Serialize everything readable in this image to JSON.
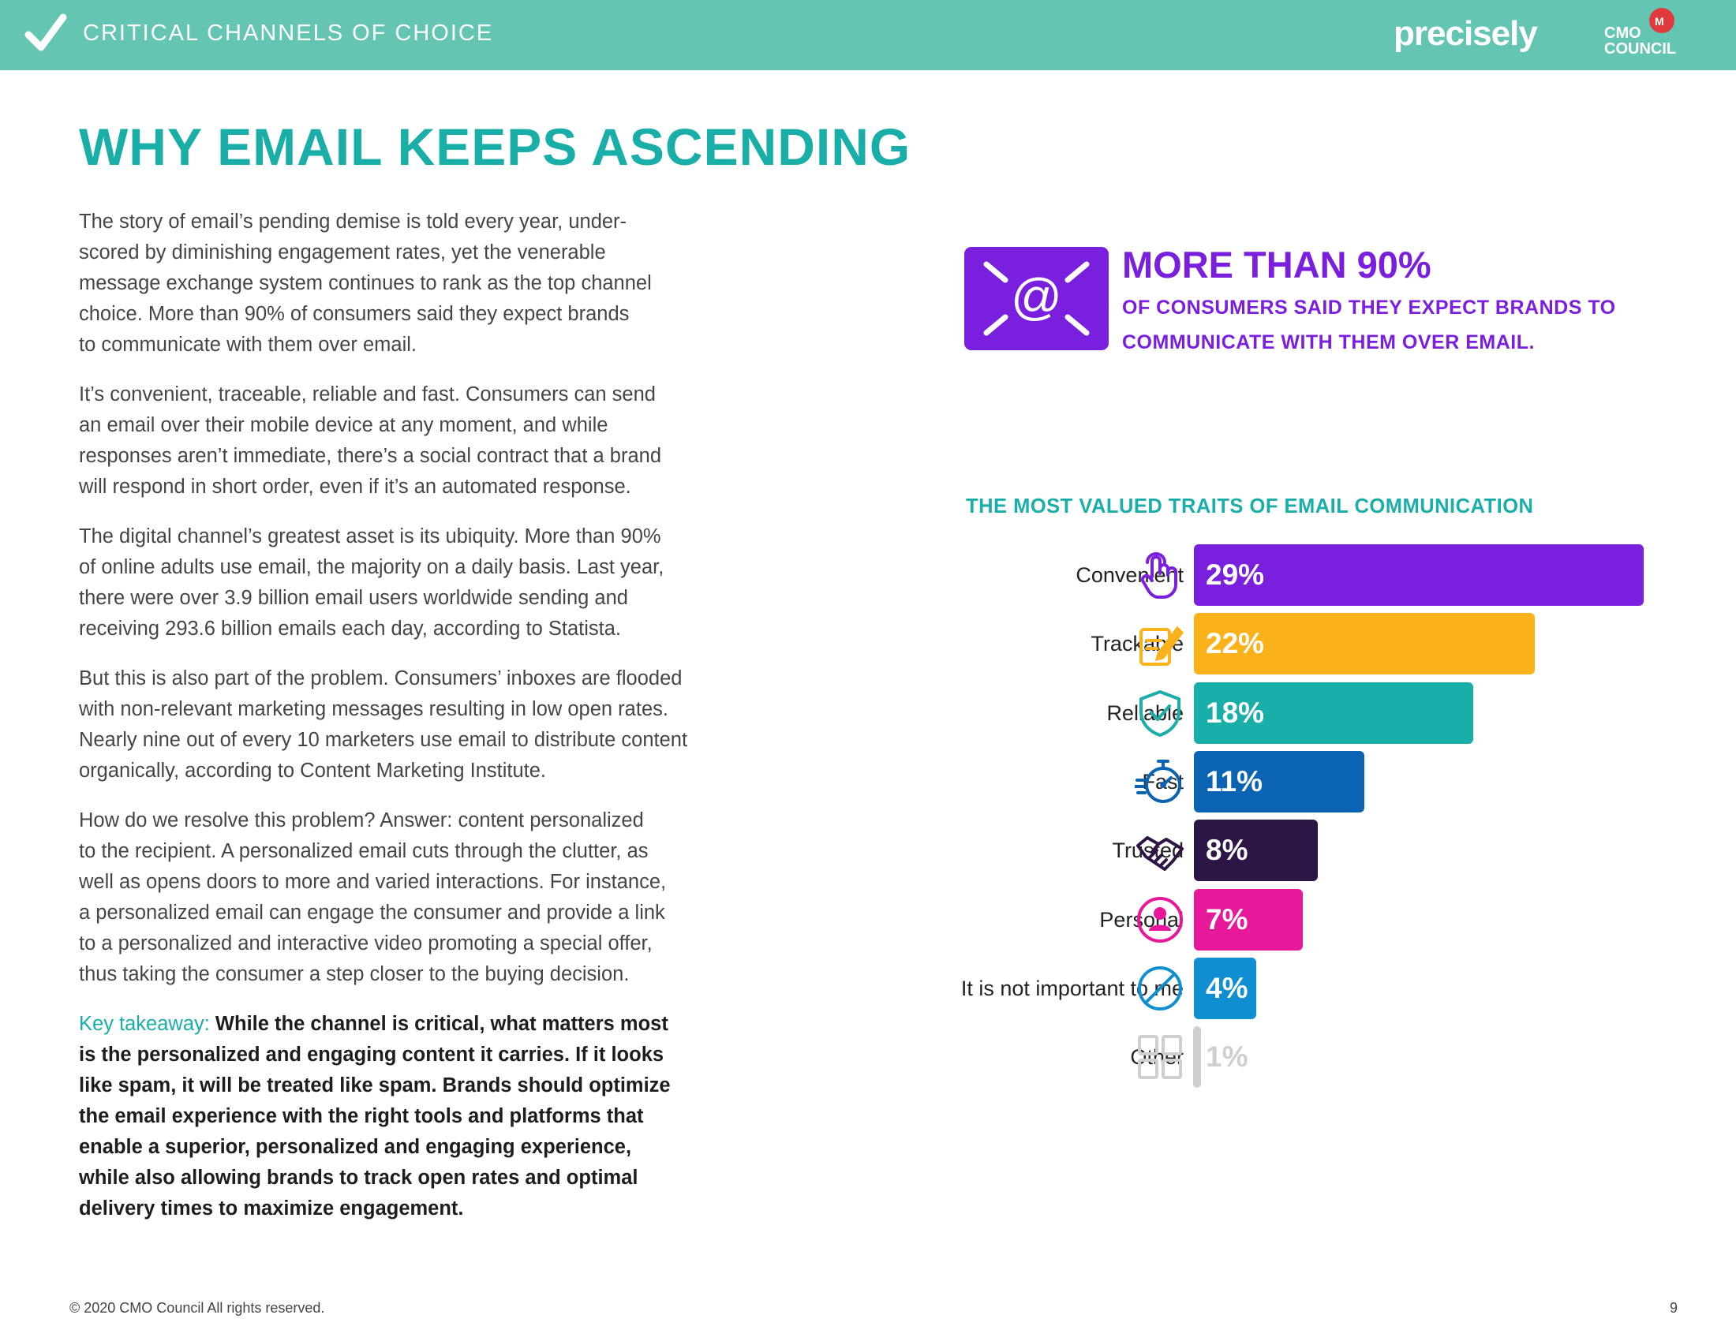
{
  "header": {
    "section_title": "CRITICAL CHANNELS OF CHOICE",
    "brand": "precisely",
    "logo_text": "CMO COUNCIL"
  },
  "page_title": "WHY EMAIL KEEPS ASCENDING",
  "body": {
    "paragraphs": [
      "The story of email’s pending demise is told every year, under-\nscored by diminishing engagement rates, yet the venerable\nmessage exchange system continues to rank as the top channel\nchoice. More than 90% of consumers said they expect brands\nto communicate with them over email.",
      "It’s convenient, traceable, reliable and fast. Consumers can send\nan email over their mobile device at any moment, and while\nresponses aren’t immediate, there’s a social contract that a brand\nwill respond in short order, even if it’s an automated response.",
      "The digital channel’s greatest asset is its ubiquity. More than 90%\nof online adults use email, the majority on a daily basis. Last year,\nthere were over 3.9 billion email users worldwide sending and\nreceiving 293.6 billion emails each day, according to Statista.",
      "But this is also part of the problem. Consumers’ inboxes are flooded\nwith non-relevant marketing messages resulting in low open rates.\nNearly nine out of every 10 marketers use email to distribute content\norganically, according to Content Marketing Institute.",
      "How do we resolve this problem? Answer: content personalized\nto the recipient. A personalized email cuts through the clutter, as\nwell as opens doors to more and varied interactions. For instance,\na personalized email can engage the consumer and provide a link\nto a personalized and interactive video promoting a special offer,\nthus taking the consumer a step closer to the buying decision."
    ],
    "takeaway_label": "Key takeaway:",
    "takeaway_text": " While the channel is critical, what matters most\nis the personalized and engaging content it carries. If it looks\nlike spam, it will be treated like spam. Brands should optimize\nthe email experience with the right tools and platforms that\nenable a superior, personalized and engaging experience,\nwhile also allowing brands to track open rates and optimal\ndelivery times to maximize engagement."
  },
  "callout": {
    "icon": "email-at-icon",
    "headline": "MORE THAN 90%",
    "subtext": "OF CONSUMERS SAID THEY EXPECT BRANDS TO\nCOMMUNICATE WITH THEM OVER EMAIL.",
    "color": "#7b1fdf"
  },
  "chart_data": {
    "type": "bar",
    "orientation": "horizontal",
    "title": "THE MOST VALUED TRAITS OF EMAIL COMMUNICATION",
    "categories": [
      "Convenient",
      "Trackable",
      "Reliable",
      "Fast",
      "Trusted",
      "Personal",
      "It is not important to me",
      "Other"
    ],
    "values": [
      29,
      22,
      18,
      11,
      8,
      7,
      4,
      1
    ],
    "value_labels": [
      "29%",
      "22%",
      "18%",
      "11%",
      "8%",
      "7%",
      "4%",
      "1%"
    ],
    "colors": [
      "#7b1fdf",
      "#fbb21a",
      "#1aaea8",
      "#0b63b3",
      "#2d1646",
      "#e8189a",
      "#0f8fd1",
      "#cfcfcf"
    ],
    "icons": [
      "touch-icon",
      "edit-document-icon",
      "shield-check-icon",
      "stopwatch-icon",
      "handshake-icon",
      "person-icon",
      "not-allowed-icon",
      "grid-icon"
    ],
    "xlim": [
      0,
      29
    ]
  },
  "footer": {
    "copyright": "© 2020 CMO Council  All rights reserved.",
    "page_number": "9"
  }
}
